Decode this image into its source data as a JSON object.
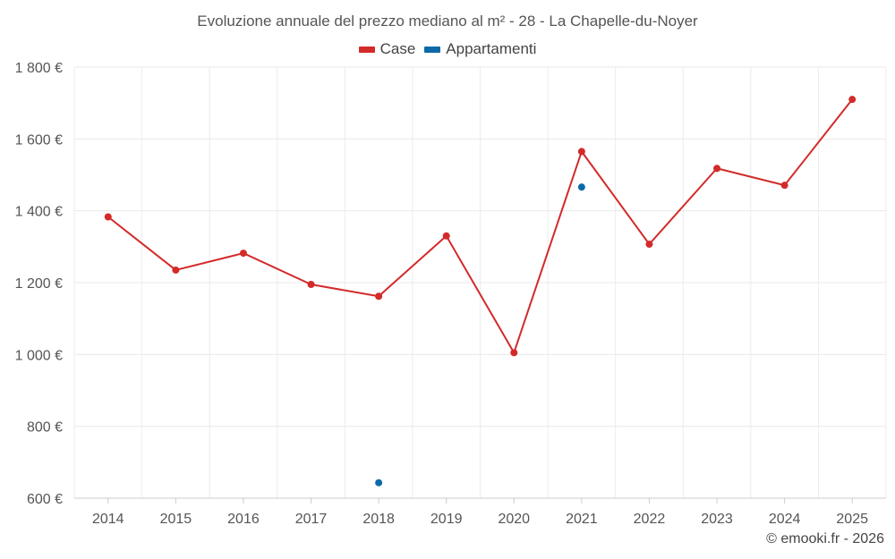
{
  "chart_data": {
    "type": "line",
    "title": "Evoluzione annuale del prezzo mediano al m² - 28 - La Chapelle-du-Noyer",
    "categories": [
      "2014",
      "2015",
      "2016",
      "2017",
      "2018",
      "2019",
      "2020",
      "2021",
      "2022",
      "2023",
      "2024",
      "2025"
    ],
    "series": [
      {
        "name": "Case",
        "color": "#d32a2a",
        "values": [
          1383,
          1235,
          1282,
          1195,
          1162,
          1330,
          1005,
          1565,
          1307,
          1518,
          1471,
          1710
        ]
      },
      {
        "name": "Appartamenti",
        "color": "#0d6aa8",
        "values": [
          null,
          null,
          null,
          null,
          643,
          null,
          null,
          1466,
          null,
          null,
          null,
          null
        ]
      }
    ],
    "ylim": [
      600,
      1800
    ],
    "yticks": [
      600,
      800,
      1000,
      1200,
      1400,
      1600,
      1800
    ],
    "ytick_labels": [
      "600 €",
      "800 €",
      "1 000 €",
      "1 200 €",
      "1 400 €",
      "1 600 €",
      "1 800 €"
    ],
    "xlabel": "",
    "ylabel": "",
    "grid": true,
    "legend_position": "top-center"
  },
  "credit": "© emooki.fr - 2026"
}
